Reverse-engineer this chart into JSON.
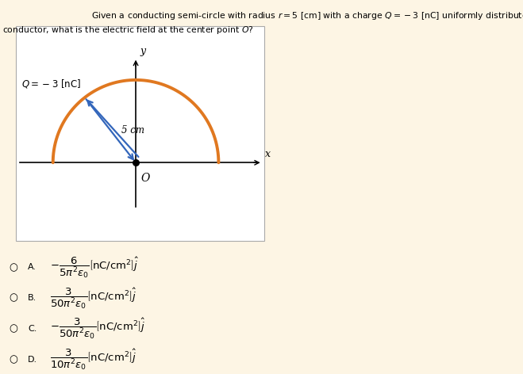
{
  "background_color": "#fdf5e4",
  "diagram_bg": "#ffffff",
  "title_line1": "Given a conducting semi-circle with radius $r = 5$ [cm] with a charge $Q = -3$ [nC] uniformly distributed along",
  "title_line2": "conductor, what is the electric field at the center point $O$?",
  "semicircle_color": "#e07820",
  "semicircle_linewidth": 2.8,
  "arrow_color": "#3366bb",
  "radius_label": "5 cm",
  "Q_label": "$Q = -3$ [nC]",
  "center_label": "O",
  "x_label": "x",
  "y_label": "y",
  "option_circles": [
    "○",
    "○",
    "○",
    "○"
  ],
  "option_letters": [
    "A.",
    "B.",
    "C.",
    "D."
  ],
  "option_neg": [
    true,
    false,
    true,
    false
  ],
  "option_numerators": [
    "6",
    "3",
    "3",
    "3"
  ],
  "option_denominators": [
    "5\\pi^2\\varepsilon_0",
    "50\\pi^2\\varepsilon_0",
    "50\\pi^2\\varepsilon_0",
    "10\\pi^2\\varepsilon_0"
  ]
}
